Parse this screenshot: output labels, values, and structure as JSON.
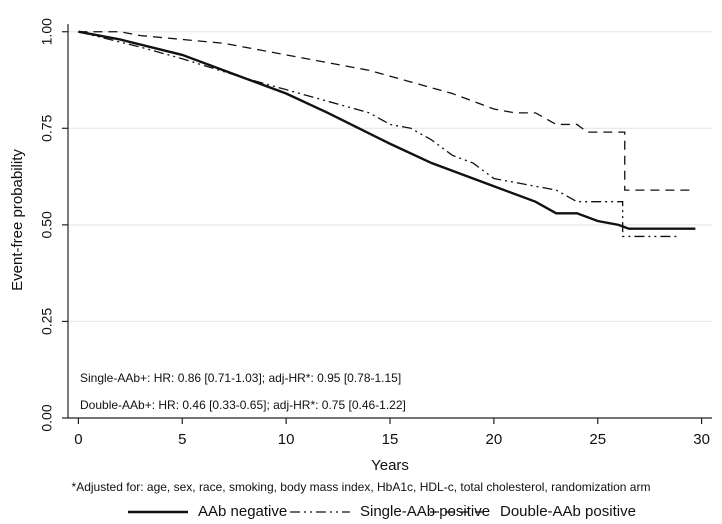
{
  "chart_data": {
    "type": "line",
    "y_axis_label": "Event-free probability",
    "x_axis_label": "Years",
    "xlim": [
      -0.5,
      30.5
    ],
    "xticks": [
      0,
      5,
      10,
      15,
      20,
      25,
      30
    ],
    "ylim": [
      0,
      1.02
    ],
    "yticks": [
      {
        "value": 0,
        "label": "0.00"
      },
      {
        "value": 0.25,
        "label": "0.25"
      },
      {
        "value": 0.5,
        "label": "0.50"
      },
      {
        "value": 0.75,
        "label": "0.75"
      },
      {
        "value": 1,
        "label": "1.00"
      }
    ],
    "grid": true,
    "annotations": [
      "Single-AAb+: HR: 0.86 [0.71-1.03]; adj-HR*: 0.95 [0.78-1.15]",
      "Double-AAb+: HR: 0.46 [0.33-0.65]; adj-HR*: 0.75 [0.46-1.22]"
    ],
    "footnote": "*Adjusted for: age, sex, race, smoking, body mass index, HbA1c, HDL-c, total cholesterol, randomization arm",
    "legend_position": "bottom",
    "series": [
      {
        "name": "AAb negative",
        "color": "#111111",
        "style": "solid",
        "x": [
          0,
          2,
          5,
          8,
          10,
          12,
          15,
          17,
          20,
          22,
          23,
          24,
          25,
          26,
          26.5,
          29.7
        ],
        "values": [
          1,
          0.98,
          0.94,
          0.88,
          0.84,
          0.79,
          0.71,
          0.66,
          0.6,
          0.56,
          0.53,
          0.53,
          0.51,
          0.5,
          0.49,
          0.49
        ]
      },
      {
        "name": "Single-AAb positive",
        "color": "#111111",
        "style": "dashdot",
        "x": [
          0,
          3,
          5,
          8,
          10,
          12,
          14,
          15,
          16,
          17,
          18,
          19,
          20,
          21,
          22,
          23,
          24,
          25,
          26.2,
          26.2,
          28.8
        ],
        "values": [
          1,
          0.96,
          0.93,
          0.88,
          0.85,
          0.82,
          0.79,
          0.76,
          0.75,
          0.72,
          0.68,
          0.66,
          0.62,
          0.61,
          0.6,
          0.59,
          0.56,
          0.56,
          0.56,
          0.47,
          0.47
        ]
      },
      {
        "name": "Double-AAb positive",
        "color": "#111111",
        "style": "dashed",
        "x": [
          0,
          2,
          3,
          5,
          7,
          9,
          10,
          12,
          14,
          16,
          18,
          19,
          20,
          21,
          22,
          23,
          24,
          24.5,
          26.3,
          26.3,
          29.7
        ],
        "values": [
          1,
          1,
          0.99,
          0.98,
          0.97,
          0.95,
          0.94,
          0.92,
          0.9,
          0.87,
          0.84,
          0.82,
          0.8,
          0.79,
          0.79,
          0.76,
          0.76,
          0.74,
          0.74,
          0.59,
          0.59
        ]
      }
    ]
  }
}
